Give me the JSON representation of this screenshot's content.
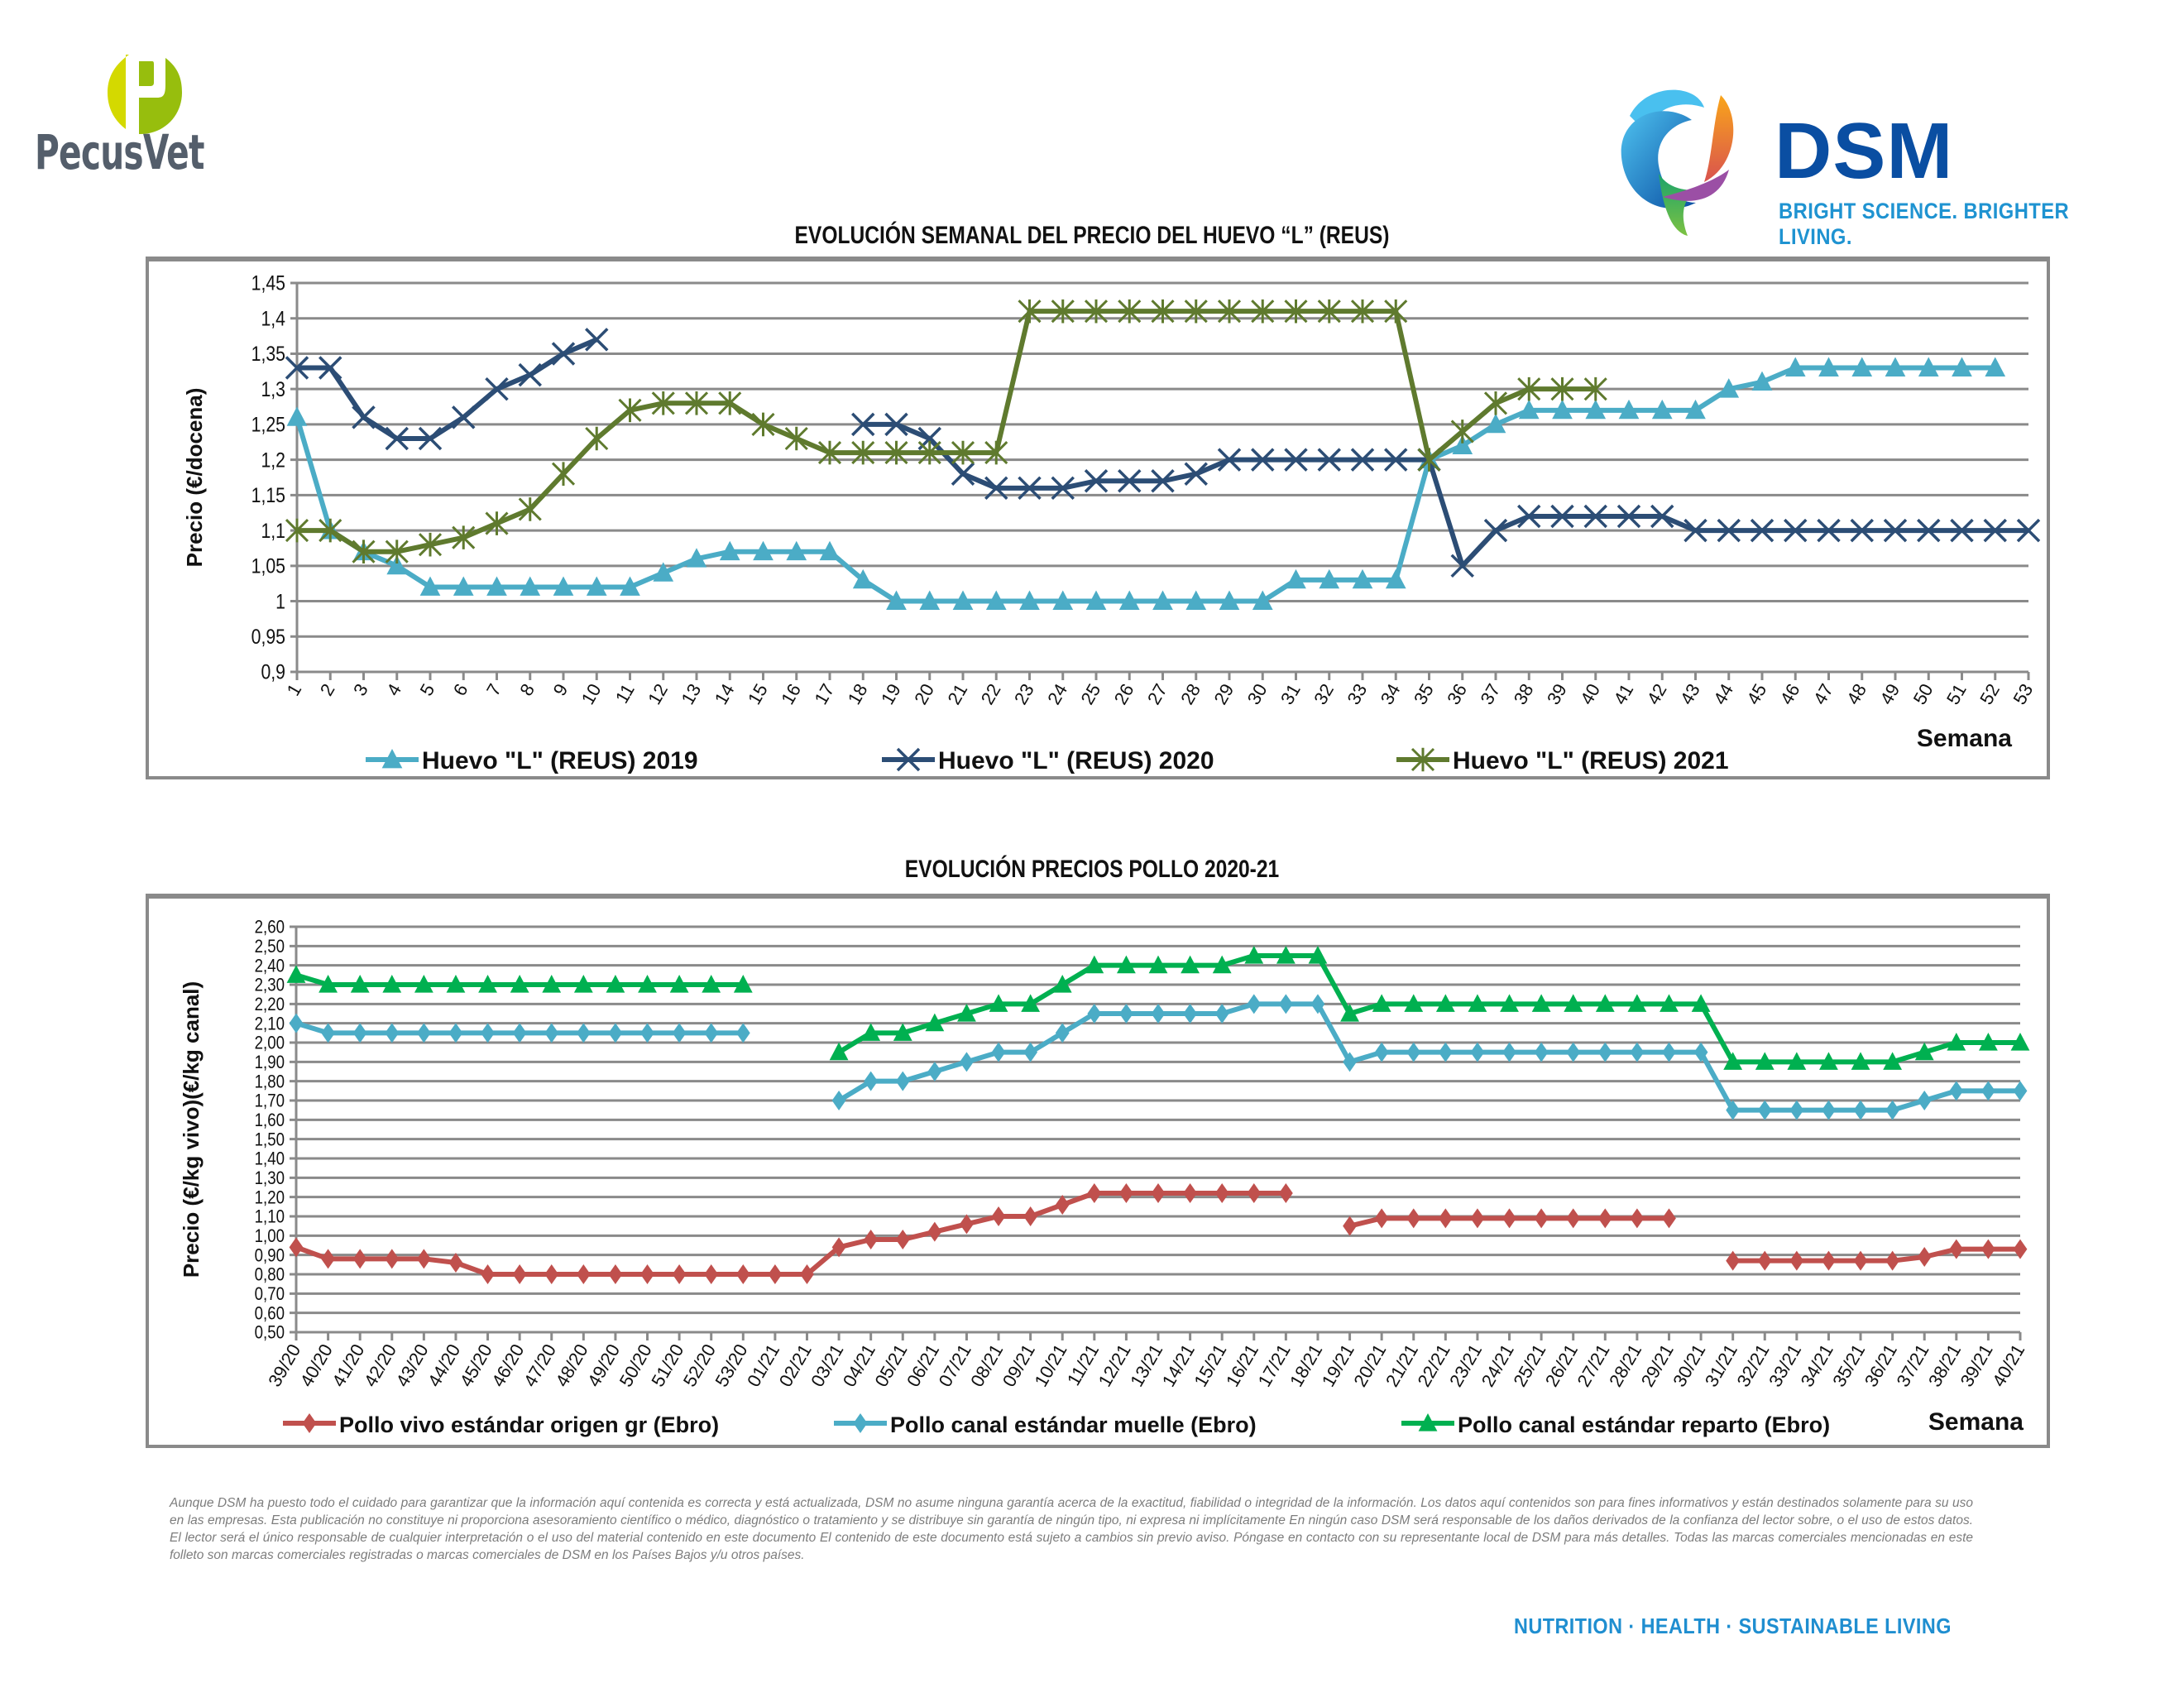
{
  "header": {
    "left_logo_text": "PecusVet",
    "right_logo_name": "DSM",
    "right_logo_tagline": "BRIGHT SCIENCE. BRIGHTER LIVING."
  },
  "colors": {
    "pecus_dark": "#545e6b",
    "pecus_lime": "#d4d900",
    "pecus_green": "#97be0d",
    "dsm_blue": "#0a4ea2",
    "dsm_light_blue": "#1f93d1",
    "grid": "#8a8a8a"
  },
  "chart_data": [
    {
      "type": "line",
      "title": "EVOLUCIÓN SEMANAL DEL PRECIO DEL HUEVO “L” (REUS)",
      "xlabel": "Semana",
      "ylabel": "Precio (€/docena)",
      "ylim": [
        0.9,
        1.45
      ],
      "ystep": 0.05,
      "yticks": [
        "0,9",
        "0,95",
        "1",
        "1,05",
        "1,1",
        "1,15",
        "1,2",
        "1,25",
        "1,3",
        "1,35",
        "1,4",
        "1,45"
      ],
      "grid": true,
      "legend": "bottom",
      "x": [
        "1",
        "2",
        "3",
        "4",
        "5",
        "6",
        "7",
        "8",
        "9",
        "10",
        "11",
        "12",
        "13",
        "14",
        "15",
        "16",
        "17",
        "18",
        "19",
        "20",
        "21",
        "22",
        "23",
        "24",
        "25",
        "26",
        "27",
        "28",
        "29",
        "30",
        "31",
        "32",
        "33",
        "34",
        "35",
        "36",
        "37",
        "38",
        "39",
        "40",
        "41",
        "42",
        "43",
        "44",
        "45",
        "46",
        "47",
        "48",
        "49",
        "50",
        "51",
        "52",
        "53"
      ],
      "series": [
        {
          "name": "Huevo \"L\" (REUS) 2019",
          "color": "#4bacc6",
          "marker": "triangle",
          "values": [
            1.26,
            1.1,
            1.07,
            1.05,
            1.02,
            1.02,
            1.02,
            1.02,
            1.02,
            1.02,
            1.02,
            1.04,
            1.06,
            1.07,
            1.07,
            1.07,
            1.07,
            1.03,
            1.0,
            1.0,
            1.0,
            1.0,
            1.0,
            1.0,
            1.0,
            1.0,
            1.0,
            1.0,
            1.0,
            1.0,
            1.03,
            1.03,
            1.03,
            1.03,
            1.2,
            1.22,
            1.25,
            1.27,
            1.27,
            1.27,
            1.27,
            1.27,
            1.27,
            1.3,
            1.31,
            1.33,
            1.33,
            1.33,
            1.33,
            1.33,
            1.33,
            1.33,
            null
          ]
        },
        {
          "name": "Huevo \"L\" (REUS) 2020",
          "color": "#2c4d75",
          "marker": "x",
          "values": [
            1.33,
            1.33,
            1.26,
            1.23,
            1.23,
            1.26,
            1.3,
            1.32,
            1.35,
            1.37,
            null,
            null,
            null,
            null,
            null,
            null,
            null,
            1.25,
            1.25,
            1.23,
            1.18,
            1.16,
            1.16,
            1.16,
            1.17,
            1.17,
            1.17,
            1.18,
            1.2,
            1.2,
            1.2,
            1.2,
            1.2,
            1.2,
            1.2,
            1.05,
            1.1,
            1.12,
            1.12,
            1.12,
            1.12,
            1.12,
            1.1,
            1.1,
            1.1,
            1.1,
            1.1,
            1.1,
            1.1,
            1.1,
            1.1,
            1.1,
            1.1
          ]
        },
        {
          "name": "Huevo \"L\" (REUS) 2021",
          "color": "#5f7a2e",
          "marker": "star",
          "values": [
            1.1,
            1.1,
            1.07,
            1.07,
            1.08,
            1.09,
            1.11,
            1.13,
            1.18,
            1.23,
            1.27,
            1.28,
            1.28,
            1.28,
            1.25,
            1.23,
            1.21,
            1.21,
            1.21,
            1.21,
            1.21,
            1.21,
            1.41,
            1.41,
            1.41,
            1.41,
            1.41,
            1.41,
            1.41,
            1.41,
            1.41,
            1.41,
            1.41,
            1.41,
            1.2,
            1.24,
            1.28,
            1.3,
            1.3,
            1.3,
            null,
            null,
            null,
            null,
            null,
            null,
            null,
            null,
            null,
            null,
            null,
            null,
            null
          ]
        }
      ]
    },
    {
      "type": "line",
      "title": "EVOLUCIÓN PRECIOS POLLO 2020-21",
      "xlabel": "Semana",
      "ylabel": "Precio (€/kg vivo)(€/kg canal)",
      "ylim": [
        0.5,
        2.6
      ],
      "ystep": 0.1,
      "yticks": [
        "0,50",
        "0,60",
        "0,70",
        "0,80",
        "0,90",
        "1,00",
        "1,10",
        "1,20",
        "1,30",
        "1,40",
        "1,50",
        "1,60",
        "1,70",
        "1,80",
        "1,90",
        "2,00",
        "2,10",
        "2,20",
        "2,30",
        "2,40",
        "2,50",
        "2,60"
      ],
      "grid": true,
      "legend": "bottom",
      "x": [
        "39/20",
        "40/20",
        "41/20",
        "42/20",
        "43/20",
        "44/20",
        "45/20",
        "46/20",
        "47/20",
        "48/20",
        "49/20",
        "50/20",
        "51/20",
        "52/20",
        "53/20",
        "01/21",
        "02/21",
        "03/21",
        "04/21",
        "05/21",
        "06/21",
        "07/21",
        "08/21",
        "09/21",
        "10/21",
        "11/21",
        "12/21",
        "13/21",
        "14/21",
        "15/21",
        "16/21",
        "17/21",
        "18/21",
        "19/21",
        "20/21",
        "21/21",
        "22/21",
        "23/21",
        "24/21",
        "25/21",
        "26/21",
        "27/21",
        "28/21",
        "29/21",
        "30/21",
        "31/21",
        "32/21",
        "33/21",
        "34/21",
        "35/21",
        "36/21",
        "37/21",
        "38/21",
        "39/21",
        "40/21"
      ],
      "series": [
        {
          "name": "Pollo vivo estándar origen gr (Ebro)",
          "color": "#c0504d",
          "marker": "diamond",
          "values": [
            0.94,
            0.88,
            0.88,
            0.88,
            0.88,
            0.86,
            0.8,
            0.8,
            0.8,
            0.8,
            0.8,
            0.8,
            0.8,
            0.8,
            0.8,
            0.8,
            0.8,
            0.94,
            0.98,
            0.98,
            1.02,
            1.06,
            1.1,
            1.1,
            1.16,
            1.22,
            1.22,
            1.22,
            1.22,
            1.22,
            1.22,
            1.22,
            null,
            1.05,
            1.09,
            1.09,
            1.09,
            1.09,
            1.09,
            1.09,
            1.09,
            1.09,
            1.09,
            1.09,
            null,
            0.87,
            0.87,
            0.87,
            0.87,
            0.87,
            0.87,
            0.89,
            0.93,
            0.93,
            0.93
          ]
        },
        {
          "name": "Pollo canal estándar muelle (Ebro)",
          "color": "#4bacc6",
          "marker": "diamond",
          "values": [
            2.1,
            2.05,
            2.05,
            2.05,
            2.05,
            2.05,
            2.05,
            2.05,
            2.05,
            2.05,
            2.05,
            2.05,
            2.05,
            2.05,
            2.05,
            null,
            null,
            1.7,
            1.8,
            1.8,
            1.85,
            1.9,
            1.95,
            1.95,
            2.05,
            2.15,
            2.15,
            2.15,
            2.15,
            2.15,
            2.2,
            2.2,
            2.2,
            1.9,
            1.95,
            1.95,
            1.95,
            1.95,
            1.95,
            1.95,
            1.95,
            1.95,
            1.95,
            1.95,
            1.95,
            1.65,
            1.65,
            1.65,
            1.65,
            1.65,
            1.65,
            1.7,
            1.75,
            1.75,
            1.75
          ]
        },
        {
          "name": "Pollo canal estándar reparto (Ebro)",
          "color": "#00b050",
          "marker": "triangle",
          "values": [
            2.35,
            2.3,
            2.3,
            2.3,
            2.3,
            2.3,
            2.3,
            2.3,
            2.3,
            2.3,
            2.3,
            2.3,
            2.3,
            2.3,
            2.3,
            null,
            null,
            1.95,
            2.05,
            2.05,
            2.1,
            2.15,
            2.2,
            2.2,
            2.3,
            2.4,
            2.4,
            2.4,
            2.4,
            2.4,
            2.45,
            2.45,
            2.45,
            2.15,
            2.2,
            2.2,
            2.2,
            2.2,
            2.2,
            2.2,
            2.2,
            2.2,
            2.2,
            2.2,
            2.2,
            1.9,
            1.9,
            1.9,
            1.9,
            1.9,
            1.9,
            1.95,
            2.0,
            2.0,
            2.0
          ]
        }
      ]
    }
  ],
  "footer": {
    "disclaimer": "Aunque DSM ha puesto todo el cuidado para garantizar que la información aquí contenida es correcta y está actualizada, DSM no asume ninguna garantía acerca de la exactitud, fiabilidad o integridad de la información. Los datos aquí contenidos son para fines informativos y están destinados solamente para su uso en las empresas. Esta publicación no constituye ni proporciona asesoramiento científico o médico, diagnóstico o tratamiento y se distribuye sin garantía de ningún tipo, ni expresa ni implícitamente En ningún caso DSM será responsable de los daños derivados de la confianza del lector sobre, o el uso de estos datos. El lector será el único responsable de cualquier interpretación o el uso del material contenido en este documento El contenido de este documento está sujeto a cambios sin previo aviso. Póngase en contacto con su representante local de DSM para más detalles. Todas las marcas comerciales mencionadas en este folleto son marcas comerciales registradas o marcas comerciales de DSM en los Países Bajos y/u otros países.",
    "slogan": "NUTRITION  ·  HEALTH  ·  SUSTAINABLE LIVING"
  }
}
